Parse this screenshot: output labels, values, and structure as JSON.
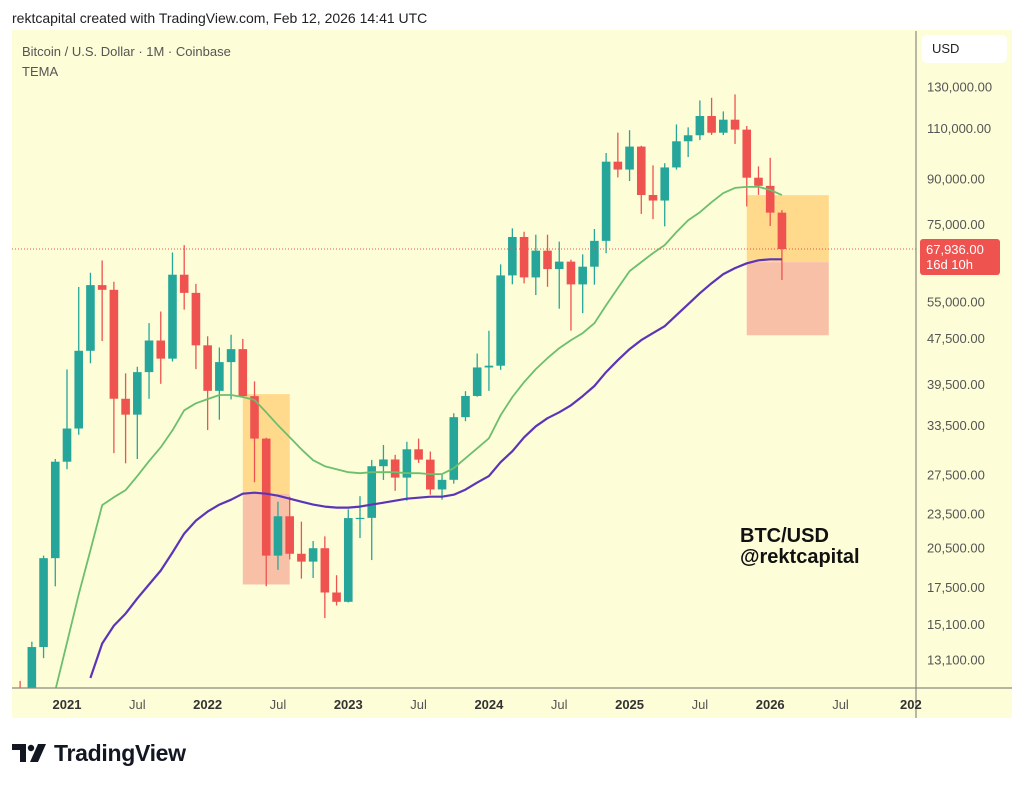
{
  "header": {
    "attribution": "rektcapital created with TradingView.com, Feb 12, 2026 14:41 UTC"
  },
  "footer": {
    "logo_text": "TradingView"
  },
  "chart_data": {
    "type": "candlestick",
    "title": "Bitcoin / U.S. Dollar · 1M · Coinbase",
    "indicator": "TEMA",
    "currency_button": "USD",
    "y_scale": "log",
    "ylim": [
      11600,
      162000
    ],
    "xlim": [
      "2020-09",
      "2027-02"
    ],
    "grid": false,
    "annotation": {
      "line1": "BTC/USD",
      "line2": "@rektcapital"
    },
    "last_price": {
      "value": 67936,
      "label": "67,936.00",
      "countdown": "16d 10h"
    },
    "colors": {
      "background": "#fdfdd8",
      "up": "#26a69a",
      "down": "#ef5350",
      "tema_fast": "#6cbf6c",
      "tema_slow": "#5b35b8",
      "zone_upper": "#ffd98c",
      "zone_lower": "#f9c0a8",
      "price_line": "#ef5350"
    },
    "y_ticks": [
      {
        "value": 130000,
        "label": "130,000.00"
      },
      {
        "value": 110000,
        "label": "110,000.00"
      },
      {
        "value": 90000,
        "label": "90,000.00"
      },
      {
        "value": 75000,
        "label": "75,000.00"
      },
      {
        "value": 55000,
        "label": "55,000.00"
      },
      {
        "value": 47500,
        "label": "47,500.00"
      },
      {
        "value": 39500,
        "label": "39,500.00"
      },
      {
        "value": 33500,
        "label": "33,500.00"
      },
      {
        "value": 27500,
        "label": "27,500.00"
      },
      {
        "value": 23500,
        "label": "23,500.00"
      },
      {
        "value": 20500,
        "label": "20,500.00"
      },
      {
        "value": 17500,
        "label": "17,500.00"
      },
      {
        "value": 15100,
        "label": "15,100.00"
      },
      {
        "value": 13100,
        "label": "13,100.00"
      }
    ],
    "x_ticks": [
      {
        "date": "2021-01",
        "label": "2021",
        "bold": true
      },
      {
        "date": "2021-07",
        "label": "Jul",
        "bold": false
      },
      {
        "date": "2022-01",
        "label": "2022",
        "bold": true
      },
      {
        "date": "2022-07",
        "label": "Jul",
        "bold": false
      },
      {
        "date": "2023-01",
        "label": "2023",
        "bold": true
      },
      {
        "date": "2023-07",
        "label": "Jul",
        "bold": false
      },
      {
        "date": "2024-01",
        "label": "2024",
        "bold": true
      },
      {
        "date": "2024-07",
        "label": "Jul",
        "bold": false
      },
      {
        "date": "2025-01",
        "label": "2025",
        "bold": true
      },
      {
        "date": "2025-07",
        "label": "Jul",
        "bold": false
      },
      {
        "date": "2026-01",
        "label": "2026",
        "bold": true
      },
      {
        "date": "2026-07",
        "label": "Jul",
        "bold": false
      },
      {
        "date": "2027-01",
        "label": "202",
        "bold": true
      }
    ],
    "zones": [
      {
        "from": "2022-04",
        "to": "2022-08",
        "top": 38000,
        "mid": 25500,
        "bottom": 17730
      },
      {
        "from": "2025-11",
        "to": "2026-06",
        "top": 84300,
        "mid": 64470,
        "bottom": 48100
      }
    ],
    "candles": [
      [
        "2020-09",
        11650,
        12050,
        9880,
        10780
      ],
      [
        "2020-10",
        10780,
        14100,
        10400,
        13800
      ],
      [
        "2020-11",
        13800,
        19900,
        13200,
        19700
      ],
      [
        "2020-12",
        19700,
        29300,
        17600,
        28990
      ],
      [
        "2021-01",
        28990,
        41950,
        28130,
        33110
      ],
      [
        "2021-02",
        33110,
        58350,
        32300,
        45200
      ],
      [
        "2021-03",
        45200,
        61790,
        43000,
        58800
      ],
      [
        "2021-04",
        58800,
        64900,
        47000,
        57700
      ],
      [
        "2021-05",
        57700,
        59600,
        30000,
        37300
      ],
      [
        "2021-06",
        37300,
        41300,
        28800,
        35000
      ],
      [
        "2021-07",
        35000,
        42400,
        29300,
        41500
      ],
      [
        "2021-08",
        41500,
        50500,
        37300,
        47100
      ],
      [
        "2021-09",
        47100,
        52900,
        39600,
        43800
      ],
      [
        "2021-10",
        43800,
        67000,
        43300,
        61300
      ],
      [
        "2021-11",
        61300,
        69000,
        53300,
        57000
      ],
      [
        "2021-12",
        57000,
        59100,
        42000,
        46200
      ],
      [
        "2022-01",
        46200,
        47900,
        32900,
        38500
      ],
      [
        "2022-02",
        38500,
        45800,
        34300,
        43200
      ],
      [
        "2022-03",
        43200,
        48200,
        37200,
        45500
      ],
      [
        "2022-04",
        45500,
        47400,
        37600,
        37700
      ],
      [
        "2022-05",
        37700,
        40000,
        26700,
        31800
      ],
      [
        "2022-06",
        31800,
        31900,
        17600,
        19900
      ],
      [
        "2022-07",
        19900,
        24700,
        18800,
        23300
      ],
      [
        "2022-08",
        23300,
        25200,
        19600,
        20050
      ],
      [
        "2022-09",
        20050,
        22800,
        18150,
        19430
      ],
      [
        "2022-10",
        19430,
        21100,
        18200,
        20500
      ],
      [
        "2022-11",
        20500,
        21500,
        15500,
        17170
      ],
      [
        "2022-12",
        17170,
        18400,
        16300,
        16540
      ],
      [
        "2023-01",
        16540,
        23960,
        16500,
        23130
      ],
      [
        "2023-02",
        23130,
        25250,
        21350,
        23150
      ],
      [
        "2023-03",
        23150,
        29200,
        19550,
        28470
      ],
      [
        "2023-04",
        28470,
        31000,
        26950,
        29250
      ],
      [
        "2023-05",
        29250,
        29800,
        25800,
        27200
      ],
      [
        "2023-06",
        27200,
        31400,
        24800,
        30470
      ],
      [
        "2023-07",
        30470,
        31800,
        28850,
        29230
      ],
      [
        "2023-08",
        29230,
        30200,
        25400,
        25940
      ],
      [
        "2023-09",
        25940,
        27500,
        24900,
        26960
      ],
      [
        "2023-10",
        26960,
        35200,
        26550,
        34650
      ],
      [
        "2023-11",
        34650,
        38450,
        34100,
        37720
      ],
      [
        "2023-12",
        37720,
        44700,
        37600,
        42280
      ],
      [
        "2024-01",
        42280,
        48970,
        38500,
        42580
      ],
      [
        "2024-02",
        42580,
        63900,
        41880,
        61130
      ],
      [
        "2024-03",
        61130,
        73800,
        59000,
        71300
      ],
      [
        "2024-04",
        71300,
        72800,
        59200,
        60640
      ],
      [
        "2024-05",
        60640,
        71950,
        56500,
        67500
      ],
      [
        "2024-06",
        67500,
        71950,
        58400,
        62700
      ],
      [
        "2024-07",
        62700,
        70000,
        53500,
        64600
      ],
      [
        "2024-08",
        64600,
        65100,
        49000,
        58970
      ],
      [
        "2024-09",
        58970,
        66500,
        52550,
        63300
      ],
      [
        "2024-10",
        63300,
        73600,
        58900,
        70200
      ],
      [
        "2024-11",
        70200,
        99800,
        66800,
        96400
      ],
      [
        "2024-12",
        96400,
        108300,
        90500,
        93400
      ],
      [
        "2025-01",
        93400,
        109350,
        89200,
        102400
      ],
      [
        "2025-02",
        102400,
        102750,
        78200,
        84350
      ],
      [
        "2025-03",
        84350,
        95000,
        76600,
        82500
      ],
      [
        "2025-04",
        82500,
        95800,
        74400,
        94200
      ],
      [
        "2025-05",
        94200,
        111900,
        93400,
        104600
      ],
      [
        "2025-06",
        104600,
        110600,
        98200,
        107150
      ],
      [
        "2025-07",
        107150,
        123200,
        105100,
        115750
      ],
      [
        "2025-08",
        115750,
        124500,
        107300,
        108250
      ],
      [
        "2025-09",
        108250,
        117900,
        107250,
        114050
      ],
      [
        "2025-10",
        114050,
        126200,
        103500,
        109600
      ],
      [
        "2025-11",
        109600,
        111200,
        80600,
        90400
      ],
      [
        "2025-12",
        90400,
        94600,
        84400,
        87500
      ],
      [
        "2026-01",
        87500,
        97900,
        74500,
        78600
      ],
      [
        "2026-02",
        78600,
        79400,
        60000,
        67936
      ]
    ],
    "tema_fast": [
      null,
      null,
      null,
      11600,
      14050,
      17040,
      20320,
      24360,
      25150,
      25870,
      27360,
      29050,
      30720,
      32880,
      35620,
      36630,
      37250,
      37860,
      37860,
      37560,
      37110,
      35330,
      33540,
      31960,
      30470,
      29160,
      28470,
      28130,
      27800,
      27690,
      27800,
      27800,
      27800,
      27690,
      27690,
      27580,
      27580,
      28250,
      29400,
      30590,
      31840,
      34910,
      37560,
      39870,
      42000,
      43890,
      45680,
      47170,
      48510,
      50490,
      54260,
      58100,
      62190,
      64470,
      66830,
      69010,
      72700,
      76270,
      78750,
      81960,
      85000,
      86800,
      87150,
      87150,
      86110,
      84320
    ],
    "tema_slow": [
      null,
      null,
      null,
      null,
      null,
      null,
      12190,
      14000,
      15040,
      15780,
      16770,
      17730,
      18750,
      20150,
      21740,
      22900,
      23740,
      24410,
      24900,
      25500,
      25600,
      25500,
      25300,
      25000,
      24700,
      24410,
      24220,
      24120,
      24120,
      24220,
      24410,
      24600,
      24800,
      25000,
      25100,
      25200,
      25200,
      25400,
      25920,
      26660,
      27360,
      28930,
      30230,
      31960,
      33410,
      34500,
      35330,
      36330,
      37700,
      39250,
      41500,
      43530,
      45500,
      47170,
      48510,
      49880,
      52130,
      54470,
      56930,
      59250,
      61450,
      62940,
      64170,
      64950,
      65210,
      65210
    ]
  }
}
